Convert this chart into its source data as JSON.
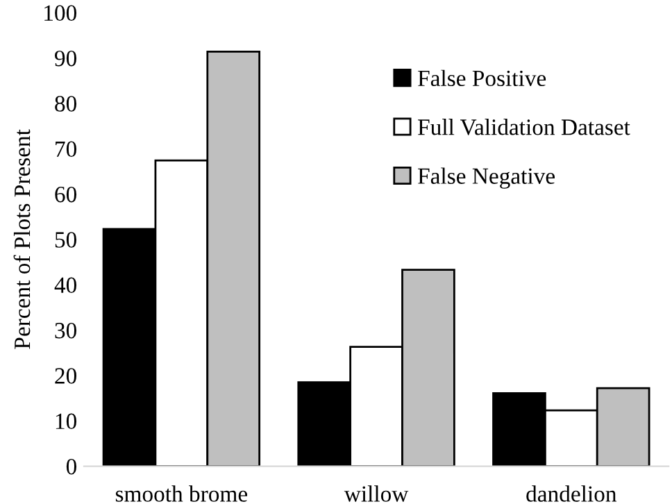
{
  "chart_data": {
    "type": "bar",
    "ylabel": "Percent of Plots Present",
    "categories": [
      "smooth brome",
      "willow",
      "dandelion"
    ],
    "series": [
      {
        "name": "False Positive",
        "color": "#000000",
        "values": [
          52.3,
          18.5,
          16.1
        ]
      },
      {
        "name": "Full Validation Dataset",
        "color": "#ffffff",
        "values": [
          67.4,
          26.3,
          12.3
        ]
      },
      {
        "name": "False Negative",
        "color": "#bfbfbf",
        "values": [
          91.4,
          43.3,
          17.2
        ]
      }
    ],
    "ylim": [
      0,
      100
    ],
    "yticks": [
      0,
      10,
      20,
      30,
      40,
      50,
      60,
      70,
      80,
      90,
      100
    ],
    "grid": false,
    "legend": "top right"
  }
}
